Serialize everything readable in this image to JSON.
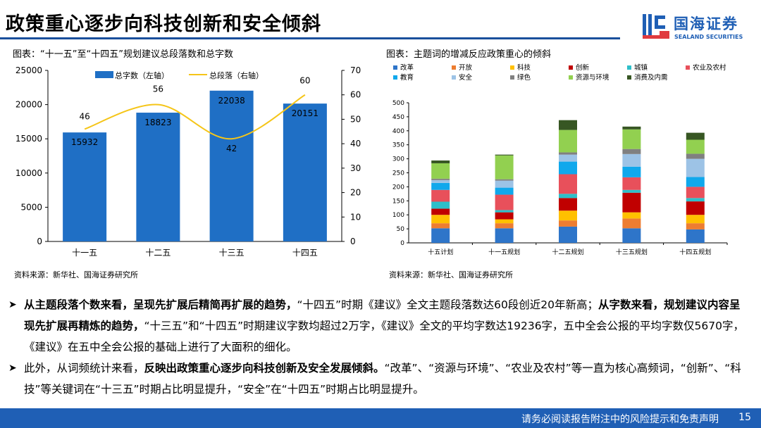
{
  "header": {
    "title": "政策重心逐步向科技创新和安全倾斜",
    "logo_cn": "国海证券",
    "logo_en": "SEALAND SECURITIES"
  },
  "left_chart_title": "图表：“十一五”至“十四五”规划建议总段落数和总字数",
  "right_chart_title": "图表：主题词的增减反应政策重心的倾斜",
  "left_source": "资料来源：新华社、国海证券研究所",
  "right_source": "资料来源：新华社、国海证券研究所",
  "chart_data": [
    {
      "type": "bar",
      "categories": [
        "十一五",
        "十二五",
        "十三五",
        "十四五"
      ],
      "series": [
        {
          "name": "总字数（左轴）",
          "type": "bar",
          "axis": "left",
          "values": [
            15932,
            18823,
            22038,
            20151
          ],
          "color": "#1f6fc5"
        },
        {
          "name": "总段落（右轴）",
          "type": "line",
          "axis": "right",
          "values": [
            46,
            56,
            42,
            60
          ],
          "color": "#f5c518"
        }
      ],
      "ylim_left": [
        0,
        25000
      ],
      "yticks_left": [
        0,
        5000,
        10000,
        15000,
        20000,
        25000
      ],
      "ylim_right": [
        0,
        70
      ],
      "yticks_right": [
        0,
        10,
        20,
        30,
        40,
        50,
        60,
        70
      ],
      "legend": "top"
    },
    {
      "type": "bar",
      "stacked": true,
      "categories": [
        "十五计划",
        "十一五规划",
        "十二五规划",
        "十三五规划",
        "十四五规划"
      ],
      "series": [
        {
          "name": "改革",
          "color": "#2e75c9",
          "values": [
            52,
            52,
            58,
            52,
            48
          ]
        },
        {
          "name": "开放",
          "color": "#ed7d31",
          "values": [
            18,
            18,
            22,
            35,
            22
          ]
        },
        {
          "name": "科技",
          "color": "#ffc000",
          "values": [
            30,
            14,
            35,
            22,
            30
          ]
        },
        {
          "name": "创新",
          "color": "#c00000",
          "values": [
            22,
            25,
            45,
            70,
            48
          ]
        },
        {
          "name": "城镇",
          "color": "#2ebfc9",
          "values": [
            25,
            8,
            15,
            10,
            12
          ]
        },
        {
          "name": "农业及农村",
          "color": "#e8505b",
          "values": [
            42,
            55,
            70,
            45,
            40
          ]
        },
        {
          "name": "教育",
          "color": "#10a8ec",
          "values": [
            25,
            25,
            45,
            38,
            35
          ]
        },
        {
          "name": "安全",
          "color": "#9dc3e6",
          "values": [
            10,
            25,
            25,
            45,
            65
          ]
        },
        {
          "name": "绿色",
          "color": "#808080",
          "values": [
            5,
            5,
            8,
            18,
            18
          ]
        },
        {
          "name": "资源与环境",
          "color": "#92d050",
          "values": [
            55,
            85,
            80,
            70,
            50
          ]
        },
        {
          "name": "消费及内需",
          "color": "#375623",
          "values": [
            10,
            3,
            35,
            10,
            25
          ]
        }
      ],
      "ylim": [
        0,
        500
      ],
      "yticks": [
        0,
        50,
        100,
        150,
        200,
        250,
        300,
        350,
        400,
        450,
        500
      ],
      "legend": "top"
    }
  ],
  "paragraphs": [
    [
      {
        "t": "从主题段落个数来看，呈现先扩展后精简再扩展的趋势，",
        "b": true
      },
      {
        "t": "“十四五”时期《建议》全文主题段落数达60段创近20年新高；",
        "b": false
      },
      {
        "t": "从字数来看，规划建议内容呈现先扩展再精炼的趋势，",
        "b": true
      },
      {
        "t": "“十三五”和“十四五”时期建议字数均超过2万字，《建议》全文的平均字数达19236字，五中全会公报的平均字数仅5670字，《建议》在五中全会公报的基础上进行了大面积的细化。",
        "b": false
      }
    ],
    [
      {
        "t": "此外，从词频统计来看，",
        "b": false
      },
      {
        "t": "反映出政策重心逐步向科技创新及安全发展倾斜。",
        "b": true
      },
      {
        "t": "“改革”、“资源与环境”、“农业及农村”等一直为核心高频词，“创新”、“科技”等关键词在“十三五”时期占比明显提升，“安全”在“十四五”时期占比明显提升。",
        "b": false
      }
    ]
  ],
  "footer": {
    "disclaimer": "请务必阅读报告附注中的风险提示和免责声明",
    "page": "15"
  }
}
